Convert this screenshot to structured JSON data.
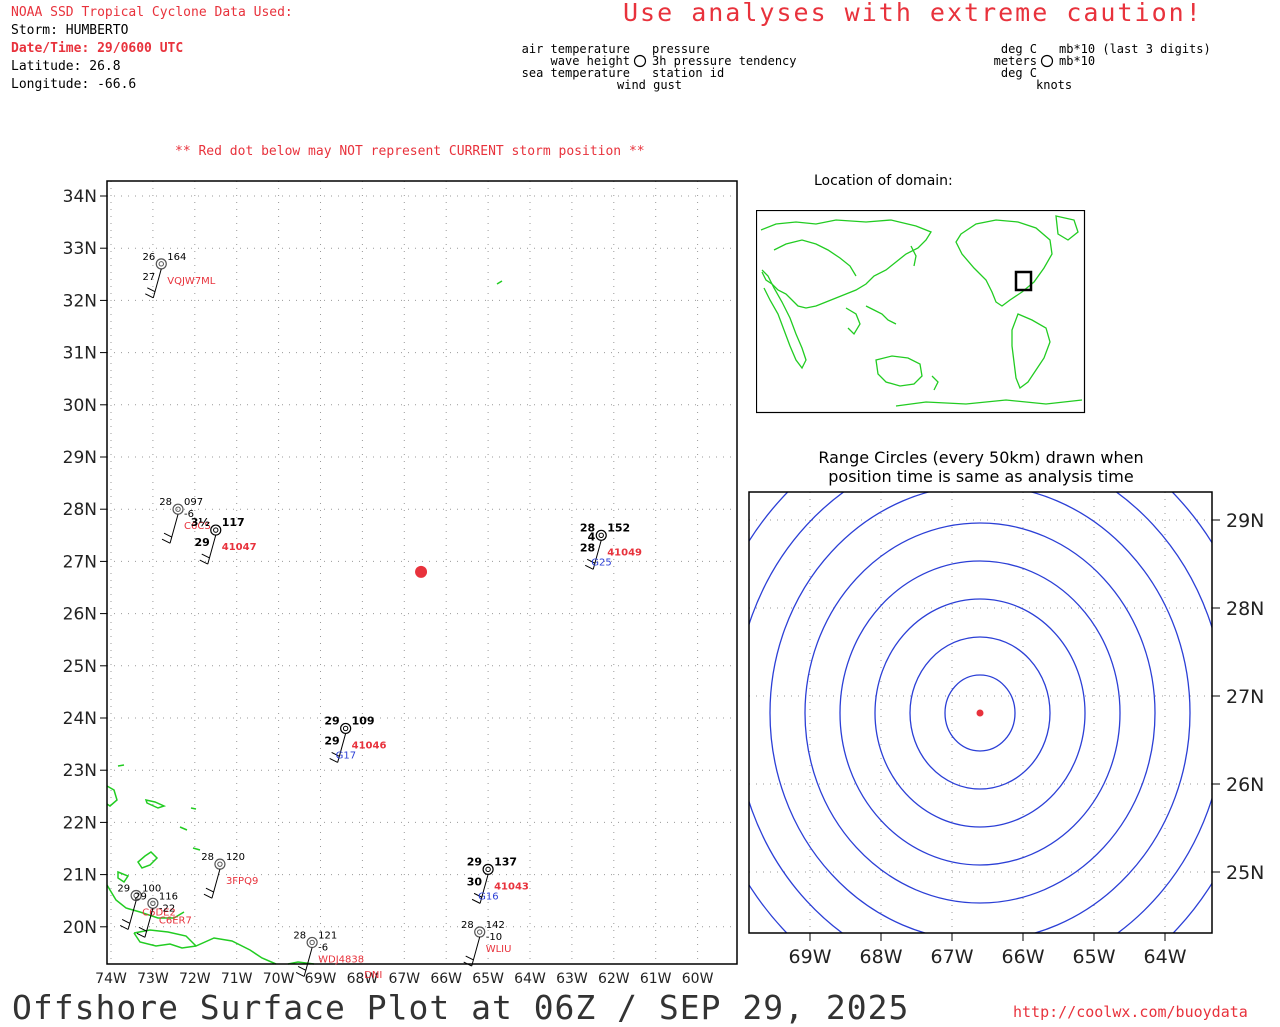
{
  "header": {
    "source": "NOAA SSD Tropical Cyclone Data Used:",
    "storm": "Storm: HUMBERTO",
    "datetime": "Date/Time: 29/0600 UTC",
    "latitude": "Latitude: 26.8",
    "longitude": "Longitude: -66.6",
    "caution": "Use analyses with extreme caution!"
  },
  "legend": {
    "left": [
      "air temperature",
      "wave height",
      "sea temperature"
    ],
    "right": [
      "pressure",
      "3h pressure tendency",
      "station id"
    ],
    "bottom": "wind gust",
    "units_left": [
      "deg C",
      "meters",
      "deg C"
    ],
    "units_right": [
      "mb*10 (last 3 digits)",
      "mb*10"
    ],
    "units_bottom": "knots"
  },
  "note": "** Red dot below may NOT represent CURRENT storm position **",
  "main_map": {
    "lat_labels": [
      "34N",
      "33N",
      "32N",
      "31N",
      "30N",
      "29N",
      "28N",
      "27N",
      "26N",
      "25N",
      "24N",
      "23N",
      "22N",
      "21N",
      "20N"
    ],
    "lon_labels": [
      "74W",
      "73W",
      "72W",
      "71W",
      "70W",
      "69W",
      "68W",
      "67W",
      "66W",
      "65W",
      "64W",
      "63W",
      "62W",
      "61W",
      "60W"
    ],
    "storm_position": {
      "lat": 26.8,
      "lon": -66.6,
      "color": "#e8323c"
    }
  },
  "stations": [
    {
      "id": "VQJW7ML",
      "temp": "26",
      "pres": "164",
      "sst": "27",
      "bold": false,
      "lat": 32.7,
      "lon": -72.8
    },
    {
      "id": "C6CS",
      "temp": "28",
      "pres": "097",
      "tend": "-6",
      "bold": false,
      "lat": 28.0,
      "lon": -72.4
    },
    {
      "id": "41047",
      "temp": "3½",
      "pres": "117",
      "sst": "29",
      "bold": true,
      "lat": 27.6,
      "lon": -71.5
    },
    {
      "id": "41049",
      "temp": "28",
      "pres": "152",
      "wave": "4",
      "sst": "28",
      "gust": "G25",
      "bold": true,
      "lat": 27.5,
      "lon": -62.3
    },
    {
      "id": "41046",
      "temp": "29",
      "pres": "109",
      "sst": "29",
      "gust": "G17",
      "bold": true,
      "lat": 23.8,
      "lon": -68.4
    },
    {
      "id": "3FPQ9",
      "temp": "28",
      "pres": "120",
      "bold": false,
      "lat": 21.2,
      "lon": -71.4
    },
    {
      "id": "41043",
      "temp": "29",
      "pres": "137",
      "sst": "30",
      "gust": "G16",
      "bold": true,
      "lat": 21.1,
      "lon": -65.0
    },
    {
      "id": "C6DE2",
      "temp": "29",
      "pres": "100",
      "bold": false,
      "lat": 20.6,
      "lon": -73.4
    },
    {
      "id": "C6ER7",
      "temp": "29",
      "pres": "116",
      "tend": "-22",
      "bold": false,
      "lat": 20.45,
      "lon": -73.0
    },
    {
      "id": "WDJ4838",
      "temp": "28",
      "pres": "121",
      "tend": "-6",
      "bold": false,
      "lat": 19.7,
      "lon": -69.2
    },
    {
      "id": "WLIU",
      "temp": "28",
      "pres": "142",
      "tend": "-10",
      "bold": false,
      "lat": 19.9,
      "lon": -65.2
    },
    {
      "id": "DNI",
      "bold": false,
      "lat": 19.1,
      "lon": -68.1
    }
  ],
  "inset": {
    "title": "Location of domain:",
    "land_color": "#22cc22"
  },
  "range_panel": {
    "title_line1": "Range Circles (every 50km) drawn when",
    "title_line2": "position time is same as analysis time",
    "lat_labels": [
      "29N",
      "28N",
      "27N",
      "26N",
      "25N"
    ],
    "lon_labels": [
      "69W",
      "68W",
      "67W",
      "66W",
      "65W",
      "64W"
    ],
    "circle_spacing_km": 50,
    "circle_color": "#2b3fd6"
  },
  "footer": {
    "title": "Offshore Surface Plot at 06Z / SEP 29, 2025",
    "url": "http://coolwx.com/buoydata"
  }
}
